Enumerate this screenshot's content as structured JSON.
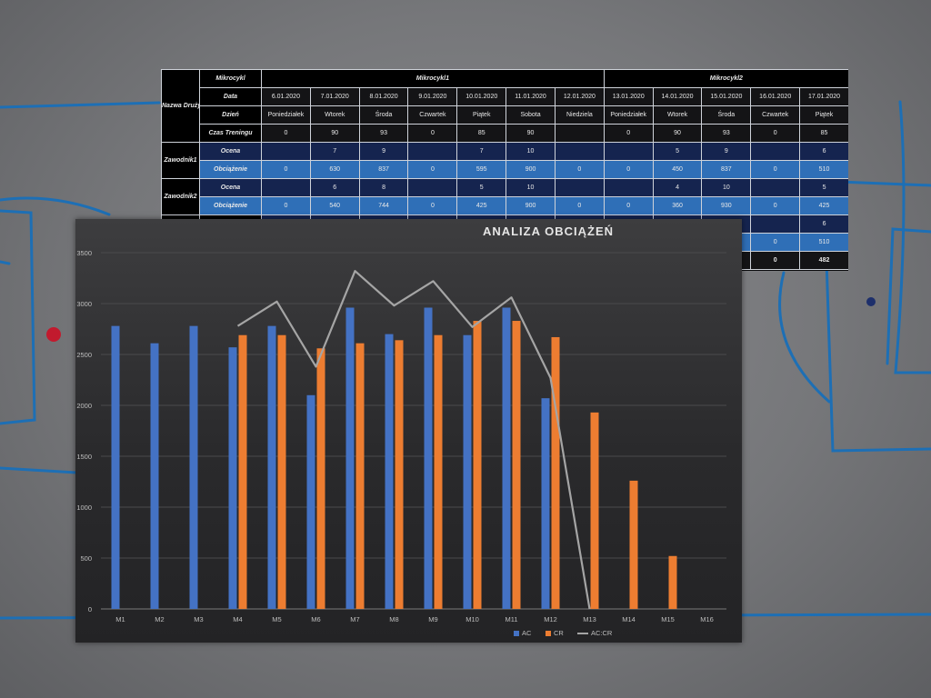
{
  "table": {
    "corner_label": "Nazwa Drużyny",
    "row_headers": {
      "mikrocykl": "Mikrocykl",
      "data": "Data",
      "dzien": "Dzień",
      "czas": "Czas Treningu"
    },
    "groups": [
      {
        "label": "Mikrocykl1",
        "span": 7
      },
      {
        "label": "Mikrocykl2",
        "span": 5
      }
    ],
    "dates": [
      "6.01.2020",
      "7.01.2020",
      "8.01.2020",
      "9.01.2020",
      "10.01.2020",
      "11.01.2020",
      "12.01.2020",
      "13.01.2020",
      "14.01.2020",
      "15.01.2020",
      "16.01.2020",
      "17.01.2020"
    ],
    "days": [
      "Poniedziałek",
      "Wtorek",
      "Środa",
      "Czwartek",
      "Piątek",
      "Sobota",
      "Niedziela",
      "Poniedziałek",
      "Wtorek",
      "Środa",
      "Czwartek",
      "Piątek"
    ],
    "times": [
      "0",
      "90",
      "93",
      "0",
      "85",
      "90",
      "",
      "0",
      "90",
      "93",
      "0",
      "85"
    ],
    "players": [
      {
        "name": "Zawodnik1",
        "rows": [
          {
            "label": "Ocena",
            "values": [
              "",
              "7",
              "9",
              "",
              "7",
              "10",
              "",
              "",
              "5",
              "9",
              "",
              "6"
            ]
          },
          {
            "label": "Obciążenie",
            "values": [
              "0",
              "630",
              "837",
              "0",
              "595",
              "900",
              "0",
              "0",
              "450",
              "837",
              "0",
              "510"
            ]
          }
        ]
      },
      {
        "name": "Zawodnik2",
        "rows": [
          {
            "label": "Ocena",
            "values": [
              "",
              "6",
              "8",
              "",
              "5",
              "10",
              "",
              "",
              "4",
              "10",
              "",
              "5"
            ]
          },
          {
            "label": "Obciążenie",
            "values": [
              "0",
              "540",
              "744",
              "0",
              "425",
              "900",
              "0",
              "0",
              "360",
              "930",
              "0",
              "425"
            ]
          }
        ]
      }
    ],
    "peek_rows": [
      {
        "values": [
          "",
          "",
          "",
          "",
          "",
          "",
          "",
          "",
          "",
          "",
          "",
          "6"
        ]
      },
      {
        "values": [
          "",
          "",
          "",
          "",
          "",
          "",
          "",
          "",
          "",
          "",
          "0",
          "510"
        ]
      },
      {
        "values": [
          "",
          "",
          "",
          "",
          "",
          "",
          "",
          "",
          "",
          "",
          "0",
          "482"
        ]
      }
    ]
  },
  "chart_data": {
    "type": "bar",
    "title": "ANALIZA OBCIĄŻEŃ",
    "categories": [
      "M1",
      "M2",
      "M3",
      "M4",
      "M5",
      "M6",
      "M7",
      "M8",
      "M9",
      "M10",
      "M11",
      "M12",
      "M13",
      "M14",
      "M15",
      "M16"
    ],
    "ylim": [
      0,
      3500
    ],
    "yticks": [
      0,
      500,
      1000,
      1500,
      2000,
      2500,
      3000,
      3500
    ],
    "grid": true,
    "legend": "bottom",
    "series": [
      {
        "name": "AC",
        "kind": "bar",
        "color": "#4472c4",
        "values": [
          2780,
          2610,
          2780,
          2570,
          2780,
          2100,
          2960,
          2700,
          2960,
          2690,
          2960,
          2070,
          null,
          null,
          null,
          null
        ]
      },
      {
        "name": "CR",
        "kind": "bar",
        "color": "#ed7d31",
        "values": [
          null,
          null,
          null,
          2690,
          2690,
          2560,
          2610,
          2640,
          2690,
          2830,
          2830,
          2670,
          1930,
          1260,
          520,
          null
        ]
      },
      {
        "name": "AC:CR",
        "kind": "line",
        "color": "#a5a5a5",
        "values": [
          null,
          null,
          null,
          2780,
          3020,
          2380,
          3320,
          2980,
          3220,
          2770,
          3060,
          2270,
          0,
          null,
          null,
          null
        ]
      }
    ]
  }
}
